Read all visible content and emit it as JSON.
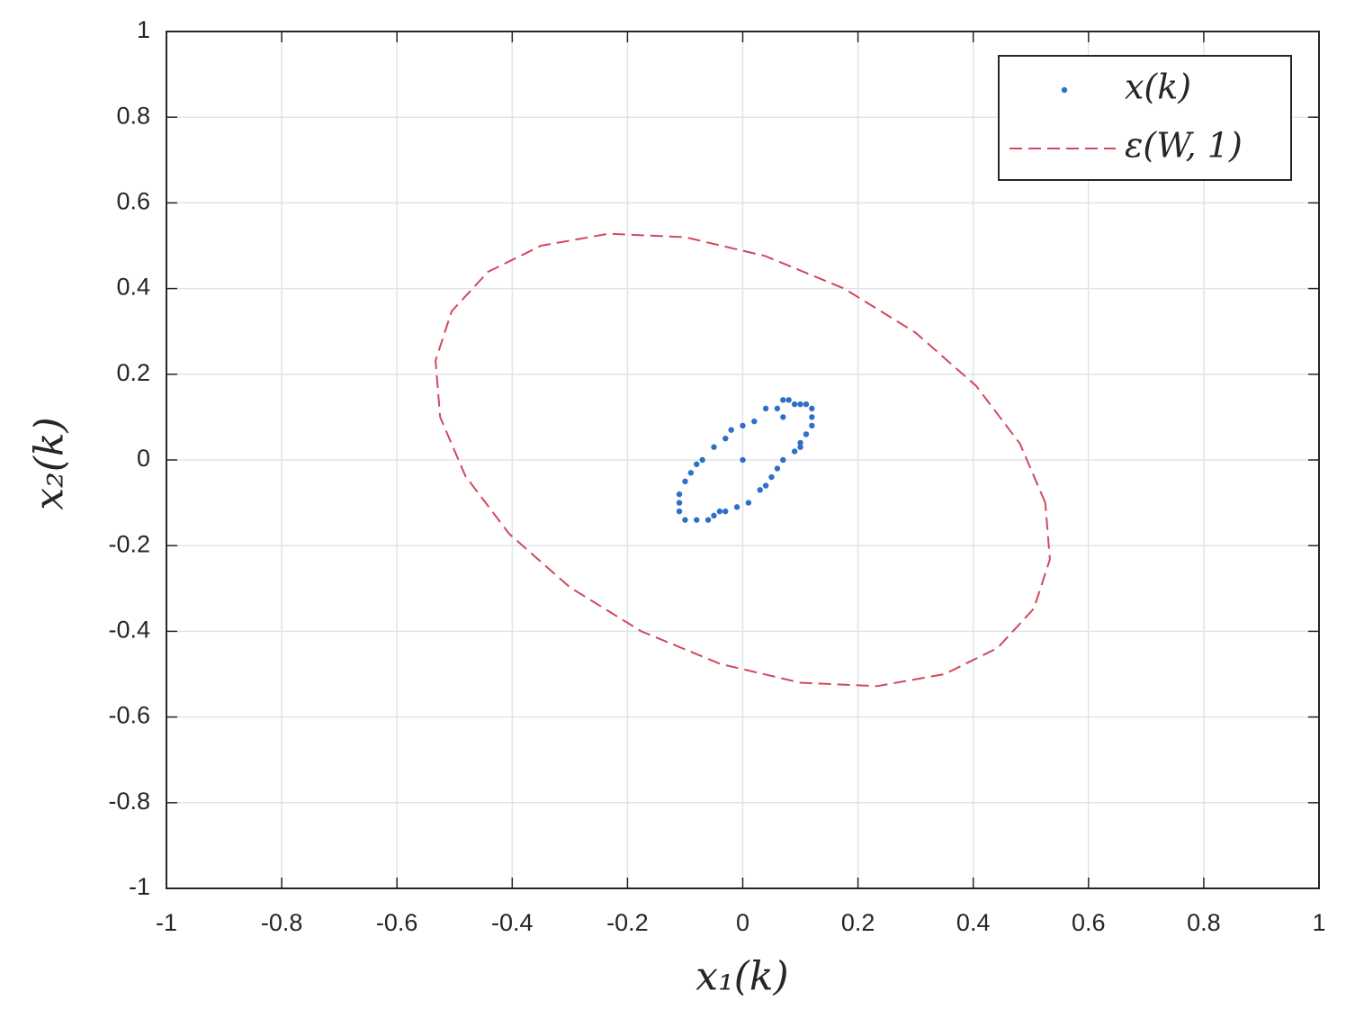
{
  "chart_data": {
    "type": "scatter",
    "xlabel": "x₁(k)",
    "ylabel": "x₂(k)",
    "xlim": [
      -1,
      1
    ],
    "ylim": [
      -1,
      1
    ],
    "xticks": [
      -1,
      -0.8,
      -0.6,
      -0.4,
      -0.2,
      0,
      0.2,
      0.4,
      0.6,
      0.8,
      1
    ],
    "yticks": [
      -1,
      -0.8,
      -0.6,
      -0.4,
      -0.2,
      0,
      0.2,
      0.4,
      0.6,
      0.8,
      1
    ],
    "grid": true,
    "legend": "upper right",
    "series": [
      {
        "name": "x(k)",
        "type": "scatter",
        "color": "#2f6fc6",
        "x": [
          0,
          0.08,
          0.07,
          0.09,
          0.1,
          0.11,
          0.12,
          0.12,
          0.12,
          0.11,
          0.1,
          0.1,
          0.09,
          0.07,
          0.06,
          0.05,
          0.04,
          0.03,
          0.01,
          -0.01,
          -0.03,
          -0.05,
          -0.06,
          -0.08,
          -0.1,
          -0.11,
          -0.11,
          -0.11,
          -0.1,
          -0.09,
          -0.08,
          -0.07,
          -0.05,
          -0.03,
          -0.02,
          0,
          0.02,
          0.04,
          0.06,
          0.07,
          -0.04
        ],
        "y": [
          0,
          0.14,
          0.14,
          0.13,
          0.13,
          0.13,
          0.12,
          0.1,
          0.08,
          0.06,
          0.04,
          0.03,
          0.02,
          0,
          -0.02,
          -0.04,
          -0.06,
          -0.07,
          -0.1,
          -0.11,
          -0.12,
          -0.13,
          -0.14,
          -0.14,
          -0.14,
          -0.12,
          -0.1,
          -0.08,
          -0.05,
          -0.03,
          -0.01,
          0,
          0.03,
          0.05,
          0.07,
          0.08,
          0.09,
          0.12,
          0.12,
          0.1,
          -0.12
        ]
      },
      {
        "name": "ε(W, 1)",
        "type": "line",
        "dashed": true,
        "color": "#d2485c",
        "x": [
          0.525,
          0.481,
          0.405,
          0.3,
          0.176,
          0.039,
          -0.1,
          -0.233,
          -0.35,
          -0.442,
          -0.505,
          -0.533,
          -0.525,
          -0.481,
          -0.405,
          -0.3,
          -0.176,
          -0.039,
          0.1,
          0.233,
          0.35,
          0.442,
          0.505,
          0.533,
          0.525
        ],
        "y": [
          -0.1,
          0.038,
          0.173,
          0.297,
          0.4,
          0.476,
          0.52,
          0.528,
          0.5,
          0.439,
          0.347,
          0.232,
          0.1,
          -0.038,
          -0.173,
          -0.297,
          -0.4,
          -0.476,
          -0.52,
          -0.528,
          -0.5,
          -0.439,
          -0.347,
          -0.232,
          -0.1
        ]
      }
    ]
  }
}
